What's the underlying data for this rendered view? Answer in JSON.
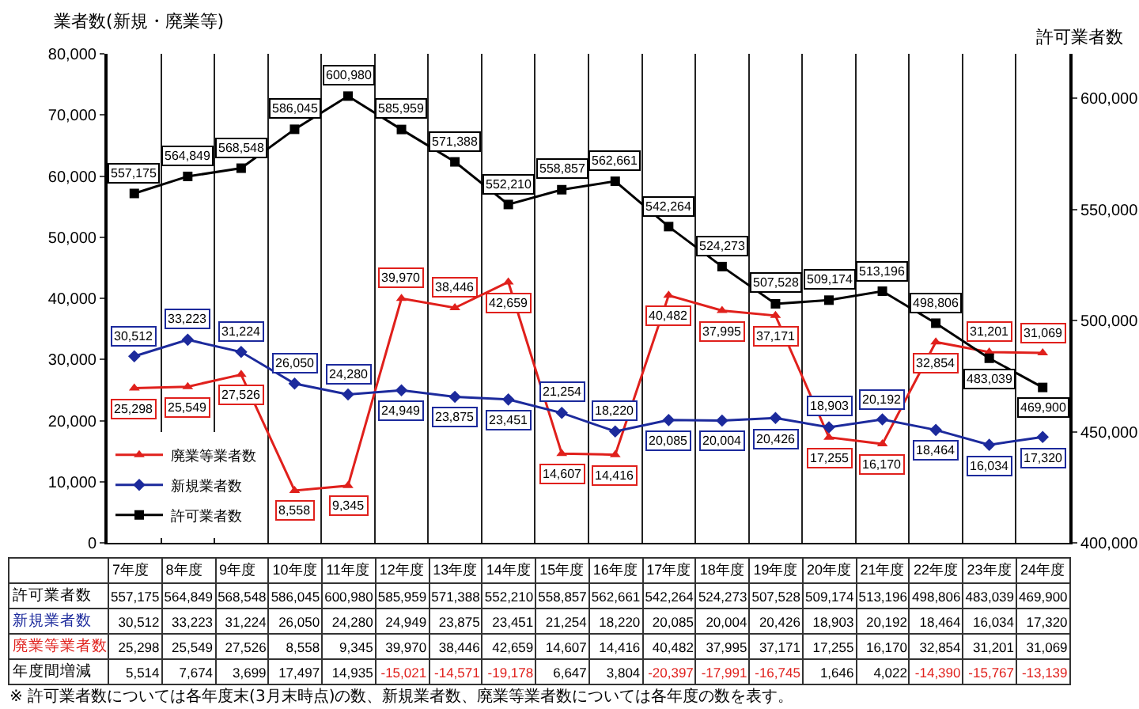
{
  "chart_data": [
    {
      "type": "line",
      "ylabel": "業者数(新規・廃業等)",
      "y2label": "許可業者数",
      "categories": [
        "7年度",
        "8年度",
        "9年度",
        "10年度",
        "11年度",
        "12年度",
        "13年度",
        "14年度",
        "15年度",
        "16年度",
        "17年度",
        "18年度",
        "19年度",
        "20年度",
        "21年度",
        "22年度",
        "23年度",
        "24年度"
      ],
      "series": [
        {
          "name": "廃業等業者数",
          "color": "#e0201c",
          "marker": "triangle",
          "values": [
            25298,
            25549,
            27526,
            8558,
            9345,
            39970,
            38446,
            42659,
            14607,
            14416,
            40482,
            37995,
            37171,
            17255,
            16170,
            32854,
            31201,
            31069
          ],
          "value_labels": [
            "25,298",
            "25,549",
            "27,526",
            "8,558",
            "9,345",
            "39,970",
            "38,446",
            "42,659",
            "14,607",
            "14,416",
            "40,482",
            "37,995",
            "37,171",
            "17,255",
            "16,170",
            "32,854",
            "31,201",
            "31,069"
          ]
        },
        {
          "name": "新規業者数",
          "color": "#1c2a9c",
          "marker": "diamond",
          "values": [
            30512,
            33223,
            31224,
            26050,
            24280,
            24949,
            23875,
            23451,
            21254,
            18220,
            20085,
            20004,
            20426,
            18903,
            20192,
            18464,
            16034,
            17320
          ],
          "value_labels": [
            "30,512",
            "33,223",
            "31,224",
            "26,050",
            "24,280",
            "24,949",
            "23,875",
            "23,451",
            "21,254",
            "18,220",
            "20,085",
            "20,004",
            "20,426",
            "18,903",
            "20,192",
            "18,464",
            "16,034",
            "17,320"
          ]
        },
        {
          "name": "許可業者数",
          "color": "#000000",
          "marker": "square",
          "axis": "y2",
          "values": [
            557175,
            564849,
            568548,
            586045,
            600980,
            585959,
            571388,
            552210,
            558857,
            562661,
            542264,
            524273,
            507528,
            509174,
            513196,
            498806,
            483039,
            469900
          ],
          "value_labels": [
            "557,175",
            "564,849",
            "568,548",
            "586,045",
            "600,980",
            "585,959",
            "571,388",
            "552,210",
            "558,857",
            "562,661",
            "542,264",
            "524,273",
            "507,528",
            "509,174",
            "513,196",
            "498,806",
            "483,039",
            "469,900"
          ]
        }
      ],
      "ylim": [
        0,
        80000
      ],
      "yticks": [
        {
          "value": 0,
          "label": "0"
        },
        {
          "value": 10000,
          "label": "10,000"
        },
        {
          "value": 20000,
          "label": "20,000"
        },
        {
          "value": 30000,
          "label": "30,000"
        },
        {
          "value": 40000,
          "label": "40,000"
        },
        {
          "value": 50000,
          "label": "50,000"
        },
        {
          "value": 60000,
          "label": "60,000"
        },
        {
          "value": 70000,
          "label": "70,000"
        },
        {
          "value": 80000,
          "label": "80,000"
        }
      ],
      "y2lim": [
        400000,
        620000
      ],
      "y2ticks": [
        {
          "value": 400000,
          "label": "400,000"
        },
        {
          "value": 450000,
          "label": "450,000"
        },
        {
          "value": 500000,
          "label": "500,000"
        },
        {
          "value": 550000,
          "label": "550,000"
        },
        {
          "value": 600000,
          "label": "600,000"
        }
      ],
      "grid": "x",
      "legend": "bottom left",
      "line_style": "solid"
    },
    {
      "type": "other",
      "series": [
        {
          "name": "年度間増減",
          "values": [
            5514,
            7674,
            3699,
            17497,
            14935,
            -15021,
            -14571,
            -19178,
            6647,
            3804,
            -20397,
            -17991,
            -16745,
            1646,
            4022,
            -14390,
            -15767,
            -13139
          ],
          "value_labels": [
            "5,514",
            "7,674",
            "3,699",
            "17,497",
            "14,935",
            "-15,021",
            "-14,571",
            "-19,178",
            "6,647",
            "3,804",
            "-20,397",
            "-17,991",
            "-16,745",
            "1,646",
            "4,022",
            "-14,390",
            "-15,767",
            "-13,139"
          ]
        }
      ],
      "annotations": [
        "※ 許可業者数については各年度末(3月末時点)の数、新規業者数、廃業等業者数については各年度の数を表す。"
      ]
    }
  ]
}
